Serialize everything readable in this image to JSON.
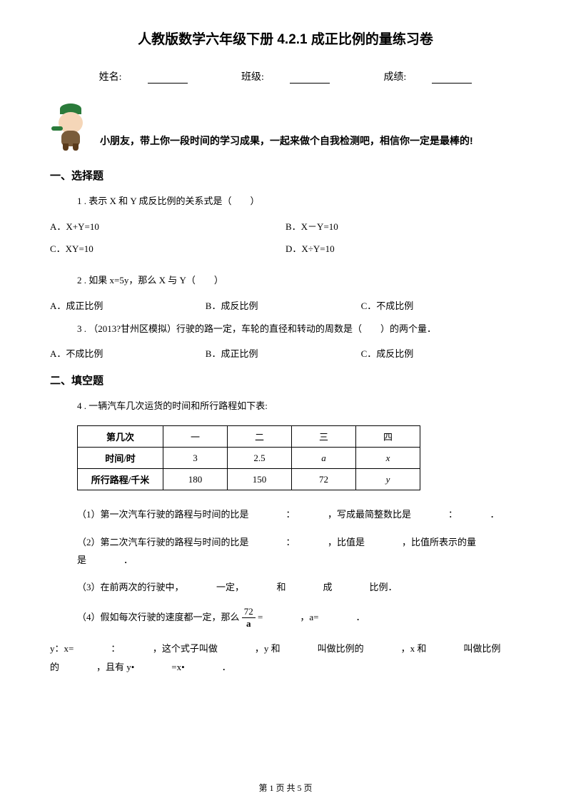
{
  "title": "人教版数学六年级下册 4.2.1 成正比例的量练习卷",
  "header": {
    "name_label": "姓名:",
    "class_label": "班级:",
    "score_label": "成绩:"
  },
  "intro": "小朋友，带上你一段时间的学习成果，一起来做个自我检测吧，相信你一定是最棒的!",
  "section1": {
    "title": "一、选择题",
    "q1": {
      "text": "1 . 表示 X 和 Y 成反比例的关系式是（　　）",
      "a": "A．X+Y=10",
      "b": "B．X－Y=10",
      "c": "C．XY=10",
      "d": "D．X÷Y=10"
    },
    "q2": {
      "text": "2 . 如果 x=5y，那么 X 与 Y（　　）",
      "a": "A．成正比例",
      "b": "B．成反比例",
      "c": "C．不成比例"
    },
    "q3": {
      "text": "3 . （2013?甘州区模拟）行驶的路一定，车轮的直径和转动的周数是（　　）的两个量．",
      "a": "A．不成比例",
      "b": "B．成正比例",
      "c": "C．成反比例"
    }
  },
  "section2": {
    "title": "二、填空题",
    "q4": {
      "text": "4 . 一辆汽车几次运货的时间和所行路程如下表:",
      "table": {
        "h1": "第几次",
        "h2": "一",
        "h3": "二",
        "h4": "三",
        "h5": "四",
        "r1c1": "时间/时",
        "r1c2": "3",
        "r1c3": "2.5",
        "r1c4": "a",
        "r1c5": "x",
        "r2c1": "所行路程/千米",
        "r2c2": "180",
        "r2c3": "150",
        "r2c4": "72",
        "r2c5": "y"
      },
      "sub1": "（1）第一次汽车行驶的路程与时间的比是　　　　：　　　　，写成最简整数比是　　　　：　　　　．",
      "sub2": "（2）第二次汽车行驶的路程与时间的比是　　　　：　　　　，比值是　　　　，比值所表示的量是　　　　．",
      "sub3": "（3）在前两次的行驶中，　　　　一定，　　　　和　　　　成　　　　比例．",
      "sub4_pre": "（4）假如每次行驶的速度都一定，那么 ",
      "sub4_post": " =　　　　，a=　　　　．",
      "sub5": "y：x=　　　　：　　　　，这个式子叫做　　　　，y 和　　　　叫做比例的　　　　，x 和　　　　叫做比例的　　　　，且有 y•　　　　=x•　　　　．",
      "frac_num": "72",
      "frac_den": "a"
    }
  },
  "footer": "第 1 页 共 5 页"
}
